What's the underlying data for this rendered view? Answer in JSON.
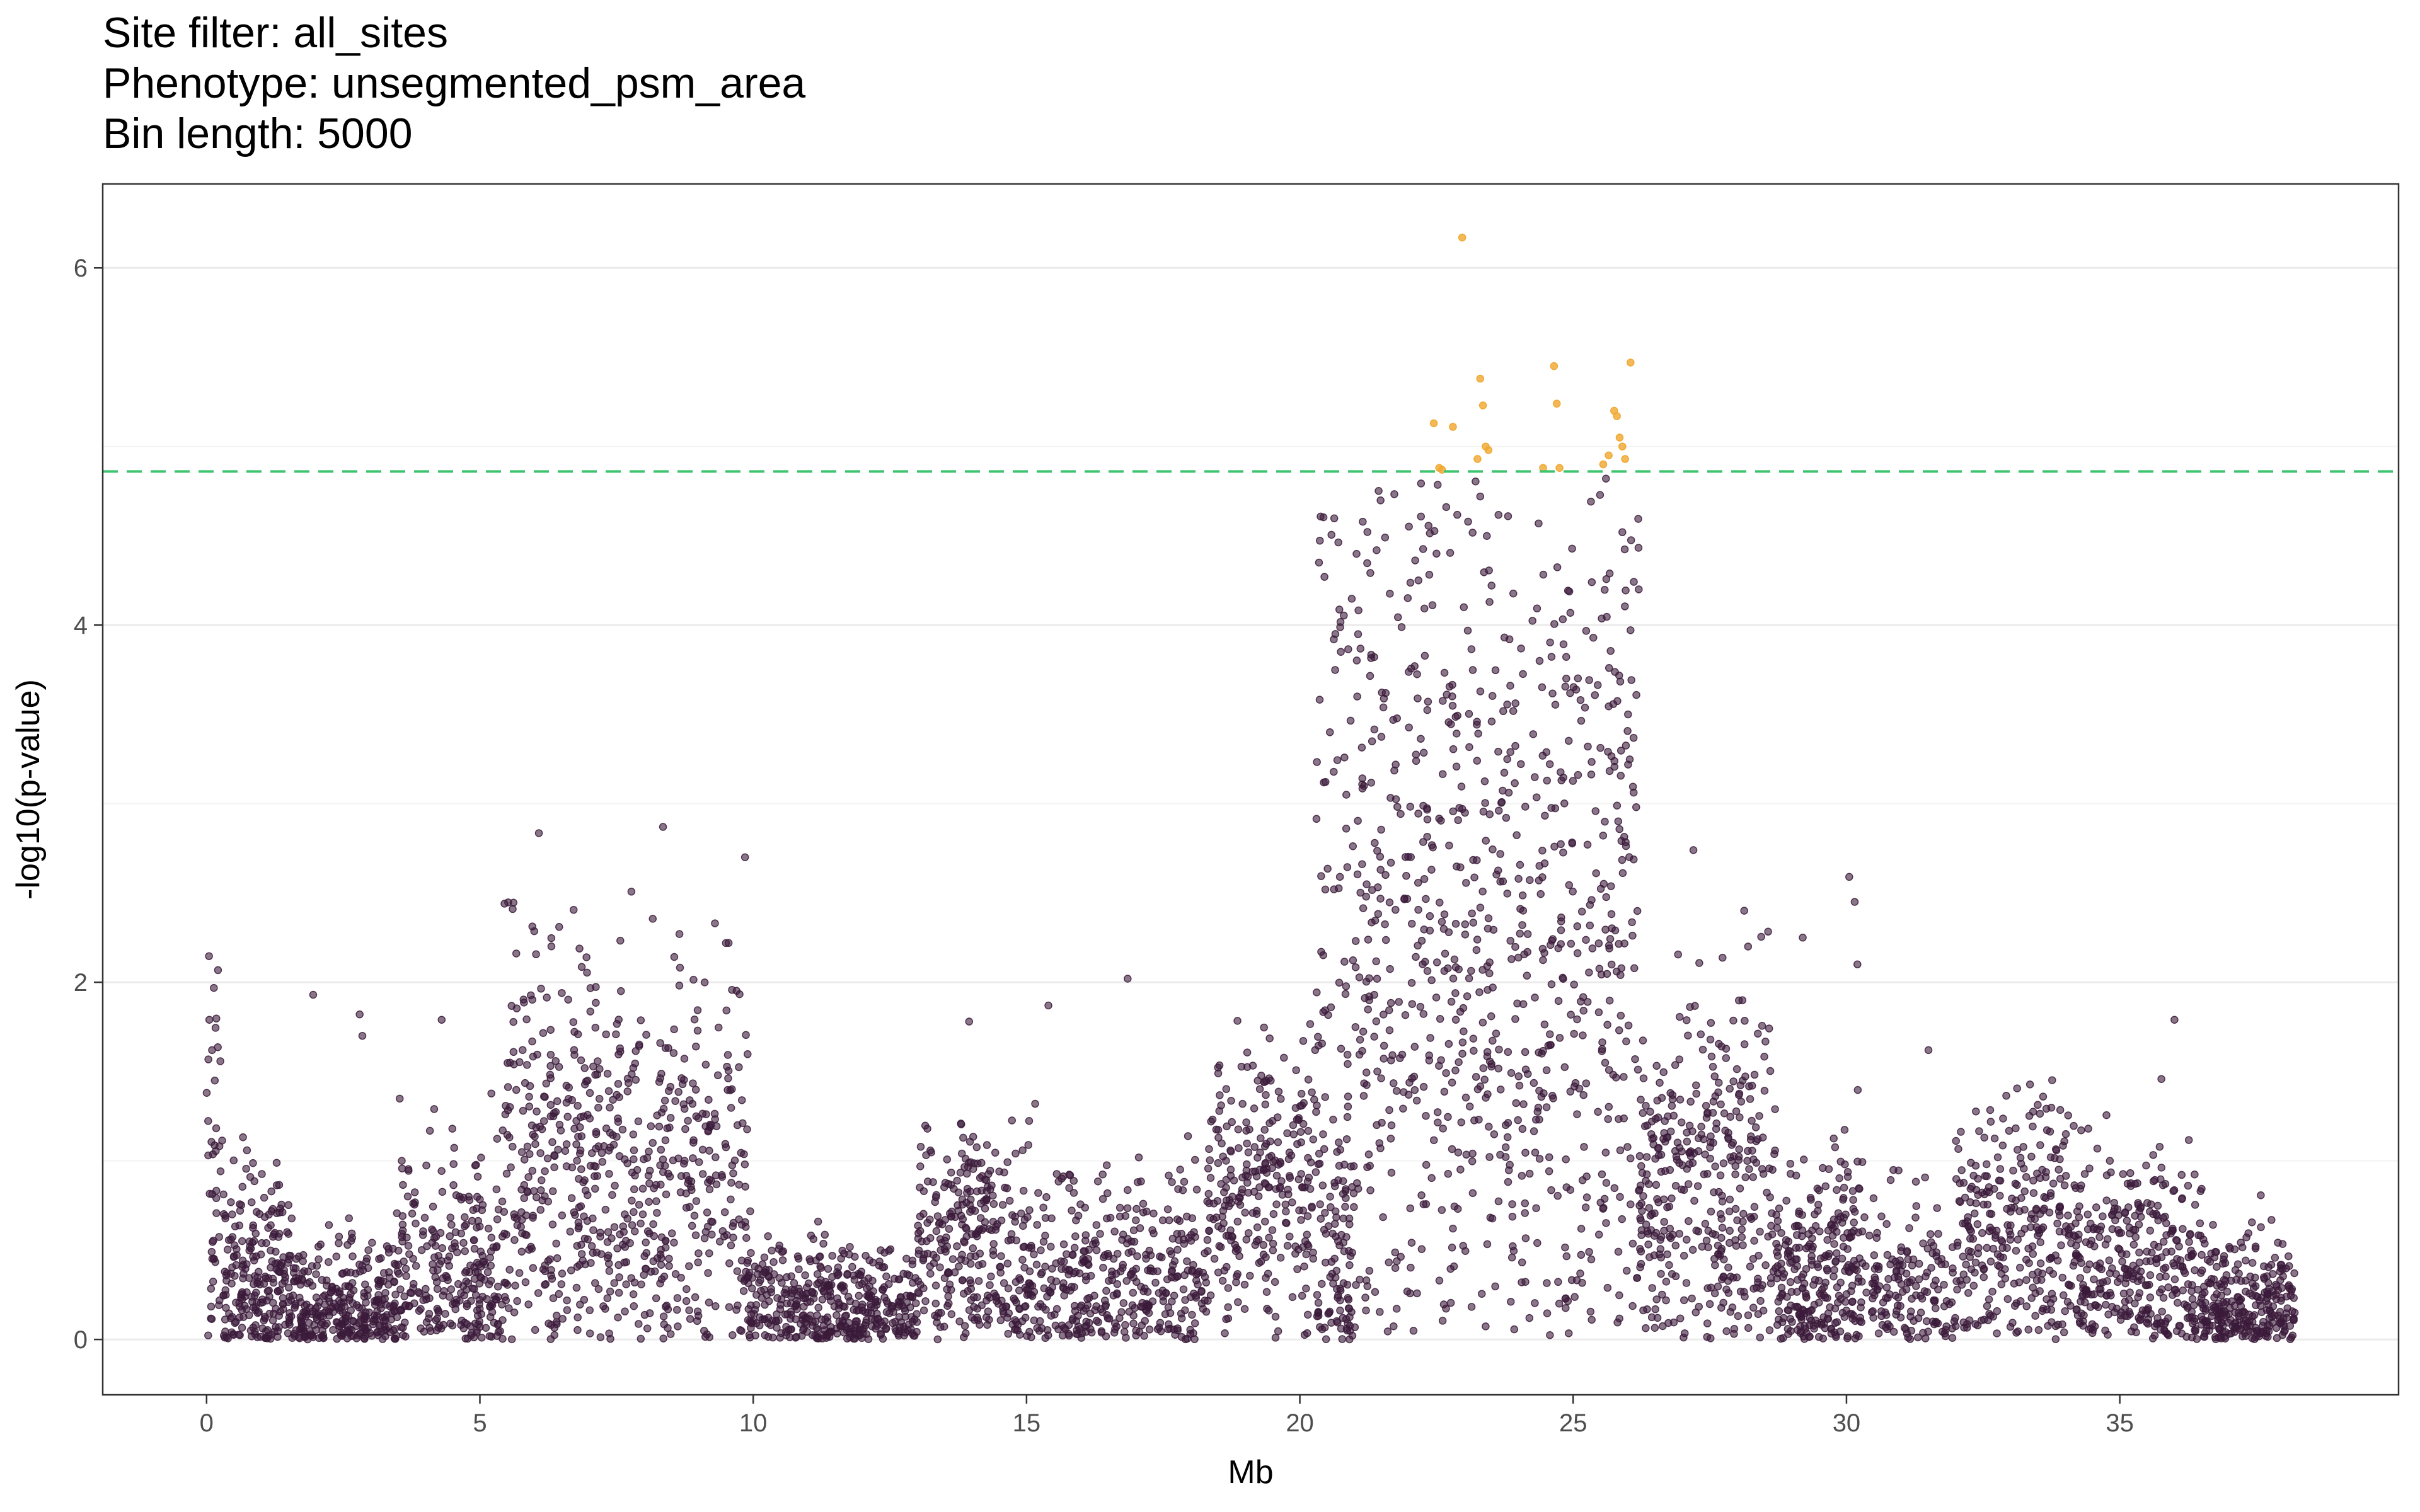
{
  "title_lines": [
    "Site filter: all_sites",
    "Phenotype: unsegmented_psm_area",
    "Bin length: 5000"
  ],
  "chart_data": {
    "type": "scatter",
    "title": "Site filter: all_sites\nPhenotype: unsegmented_psm_area\nBin length: 5000",
    "xlabel": "Mb",
    "ylabel": "-log10(p-value)",
    "xlim": [
      -1.9,
      40.1
    ],
    "ylim": [
      -0.31,
      6.47
    ],
    "x_ticks": [
      0,
      5,
      10,
      15,
      20,
      25,
      30,
      35
    ],
    "y_ticks": [
      0,
      2,
      4,
      6
    ],
    "threshold": 4.86,
    "grid": true,
    "legend": "none",
    "colors": {
      "below_threshold": "#3b1a3a",
      "above_threshold": "#f0a830",
      "threshold_line": "#3dc46e",
      "grid_major": "#ebebeb",
      "grid_minor": "#f3f3f3",
      "panel_border": "#333333"
    },
    "significant_points": {
      "x": [
        22.45,
        22.6,
        22.8,
        22.97,
        23.25,
        23.3,
        23.35,
        23.4,
        23.45,
        24.45,
        24.65,
        24.7,
        24.75,
        25.55,
        25.65,
        25.75,
        25.8,
        25.85,
        25.9,
        25.95,
        26.05,
        22.55
      ],
      "y": [
        5.13,
        4.87,
        5.11,
        6.17,
        4.93,
        5.38,
        5.23,
        5.0,
        4.98,
        4.88,
        5.45,
        5.24,
        4.88,
        4.9,
        4.95,
        5.2,
        5.17,
        5.05,
        5.0,
        4.93,
        5.47,
        4.88
      ]
    },
    "segments": [
      {
        "x0": 0.0,
        "x1": 0.3,
        "n": 40,
        "mean": 0.8,
        "spread": 0.7
      },
      {
        "x0": 0.3,
        "x1": 1.5,
        "n": 220,
        "mean": 0.35,
        "spread": 0.3
      },
      {
        "x0": 1.5,
        "x1": 3.5,
        "n": 320,
        "mean": 0.12,
        "spread": 0.2
      },
      {
        "x0": 3.5,
        "x1": 5.4,
        "n": 260,
        "mean": 0.35,
        "spread": 0.35
      },
      {
        "x0": 5.4,
        "x1": 7.2,
        "n": 280,
        "mean": 0.95,
        "spread": 0.6
      },
      {
        "x0": 7.2,
        "x1": 9.9,
        "n": 360,
        "mean": 0.9,
        "spread": 0.55
      },
      {
        "x0": 9.9,
        "x1": 13.0,
        "n": 420,
        "mean": 0.15,
        "spread": 0.2
      },
      {
        "x0": 13.0,
        "x1": 14.6,
        "n": 240,
        "mean": 0.5,
        "spread": 0.35
      },
      {
        "x0": 14.6,
        "x1": 18.3,
        "n": 440,
        "mean": 0.3,
        "spread": 0.35
      },
      {
        "x0": 18.3,
        "x1": 20.3,
        "n": 280,
        "mean": 0.85,
        "spread": 0.4
      },
      {
        "x0": 20.3,
        "x1": 21.0,
        "n": 110,
        "mean": 0.5,
        "spread": 0.5
      },
      {
        "x0": 20.3,
        "x1": 21.0,
        "n": 50,
        "mean": 2.8,
        "spread": 1.1
      },
      {
        "x0": 21.0,
        "x1": 26.2,
        "n": 620,
        "mean": 2.6,
        "spread": 1.1
      },
      {
        "x0": 21.0,
        "x1": 26.2,
        "n": 180,
        "mean": 0.8,
        "spread": 0.7
      },
      {
        "x0": 26.2,
        "x1": 28.7,
        "n": 380,
        "mean": 0.85,
        "spread": 0.55
      },
      {
        "x0": 28.7,
        "x1": 30.3,
        "n": 280,
        "mean": 0.35,
        "spread": 0.35
      },
      {
        "x0": 30.3,
        "x1": 32.0,
        "n": 160,
        "mean": 0.25,
        "spread": 0.3
      },
      {
        "x0": 32.0,
        "x1": 34.3,
        "n": 320,
        "mean": 0.6,
        "spread": 0.35
      },
      {
        "x0": 34.3,
        "x1": 36.5,
        "n": 320,
        "mean": 0.4,
        "spread": 0.35
      },
      {
        "x0": 36.5,
        "x1": 38.2,
        "n": 280,
        "mean": 0.18,
        "spread": 0.2
      }
    ],
    "outliers": {
      "x": [
        0.05,
        0.1,
        0.15,
        1.95,
        2.8,
        2.85,
        4.3,
        5.45,
        5.6,
        6.45,
        6.95,
        8.35,
        8.65,
        9.3,
        9.55,
        9.85,
        13.95,
        15.4,
        16.85,
        20.35,
        20.45,
        20.55,
        20.65,
        20.75,
        20.85,
        21.05,
        22.1,
        22.5,
        23.0,
        23.3,
        25.6,
        25.9,
        26.2,
        27.2,
        28.2,
        29.2,
        30.05,
        30.15,
        30.2,
        31.5,
        36.0
      ],
      "y": [
        1.79,
        1.62,
        1.45,
        1.93,
        1.82,
        1.7,
        1.79,
        2.44,
        2.41,
        2.31,
        2.14,
        2.87,
        2.27,
        2.33,
        2.22,
        2.7,
        1.78,
        1.87,
        2.02,
        4.35,
        4.27,
        3.4,
        3.95,
        3.85,
        3.05,
        3.6,
        3.77,
        4.4,
        4.1,
        4.72,
        4.82,
        4.52,
        4.2,
        2.74,
        2.2,
        2.25,
        2.59,
        2.45,
        2.1,
        1.62,
        1.79
      ]
    }
  }
}
